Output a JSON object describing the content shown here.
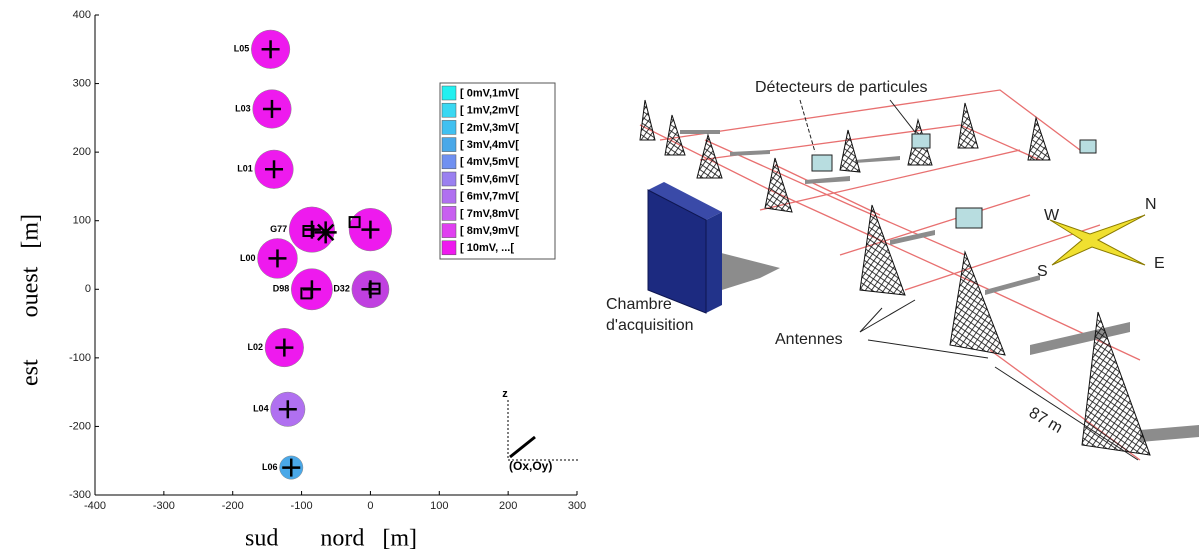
{
  "chart_data": {
    "type": "scatter",
    "xlabel": "sud       nord   [m]",
    "ylabel": "est       ouest   [m]",
    "xlim": [
      -400,
      300
    ],
    "ylim": [
      -300,
      400
    ],
    "xticks": [
      -400,
      -300,
      -200,
      -100,
      0,
      100,
      200,
      300
    ],
    "yticks": [
      -300,
      -200,
      -100,
      0,
      100,
      200,
      300,
      400
    ],
    "series": [
      {
        "marker": "circle",
        "labels": [
          "L05",
          "L03",
          "L01",
          "G77",
          null,
          "L00",
          "D98",
          "D32",
          "L02",
          "L04",
          "L06"
        ],
        "x": [
          -145,
          -143,
          -140,
          -85,
          0,
          -135,
          -85,
          0,
          -125,
          -120,
          -115
        ],
        "y": [
          350,
          263,
          175,
          87,
          87,
          45,
          0,
          0,
          -85,
          -175,
          -260
        ],
        "sizes": [
          28,
          28,
          28,
          33,
          31,
          29,
          30,
          27,
          28,
          25,
          17
        ],
        "colors": [
          "#ee1aee",
          "#ee1aee",
          "#ee1aee",
          "#ee1aee",
          "#ee1aee",
          "#ee1aee",
          "#ee1aee",
          "#c040e0",
          "#ee1aee",
          "#b070f0",
          "#4aa8e8"
        ]
      },
      {
        "marker": "square",
        "x": [
          -90,
          -23,
          -93,
          6
        ],
        "y": [
          85,
          98,
          -6,
          1
        ]
      },
      {
        "marker": "star",
        "x": [
          -65
        ],
        "y": [
          83
        ]
      }
    ],
    "legend": {
      "position": "upper right",
      "entries": [
        "[ 0mV,1mV[",
        "[ 1mV,2mV[",
        "[ 2mV,3mV[",
        "[ 3mV,4mV[",
        "[ 4mV,5mV[",
        "[ 5mV,6mV[",
        "[ 6mV,7mV[",
        "[ 7mV,8mV[",
        "[ 8mV,9mV[",
        "[ 10mV, ...["
      ],
      "colors": [
        "#22f0f0",
        "#3ad8f2",
        "#40c0f0",
        "#4aa8e8",
        "#7090f0",
        "#9a80f0",
        "#b070f0",
        "#c860f0",
        "#e040f0",
        "#ee1aee"
      ]
    },
    "annotations": [
      "z",
      "(Ox,Oy)"
    ]
  },
  "diagram": {
    "labels": {
      "detectors": "Détecteurs de particules",
      "chamber_1": "Chambre",
      "chamber_2": "d'acquisition",
      "antennas": "Antennes",
      "distance": "87 m",
      "west": "W",
      "north": "N",
      "south": "S",
      "east": "E"
    }
  }
}
